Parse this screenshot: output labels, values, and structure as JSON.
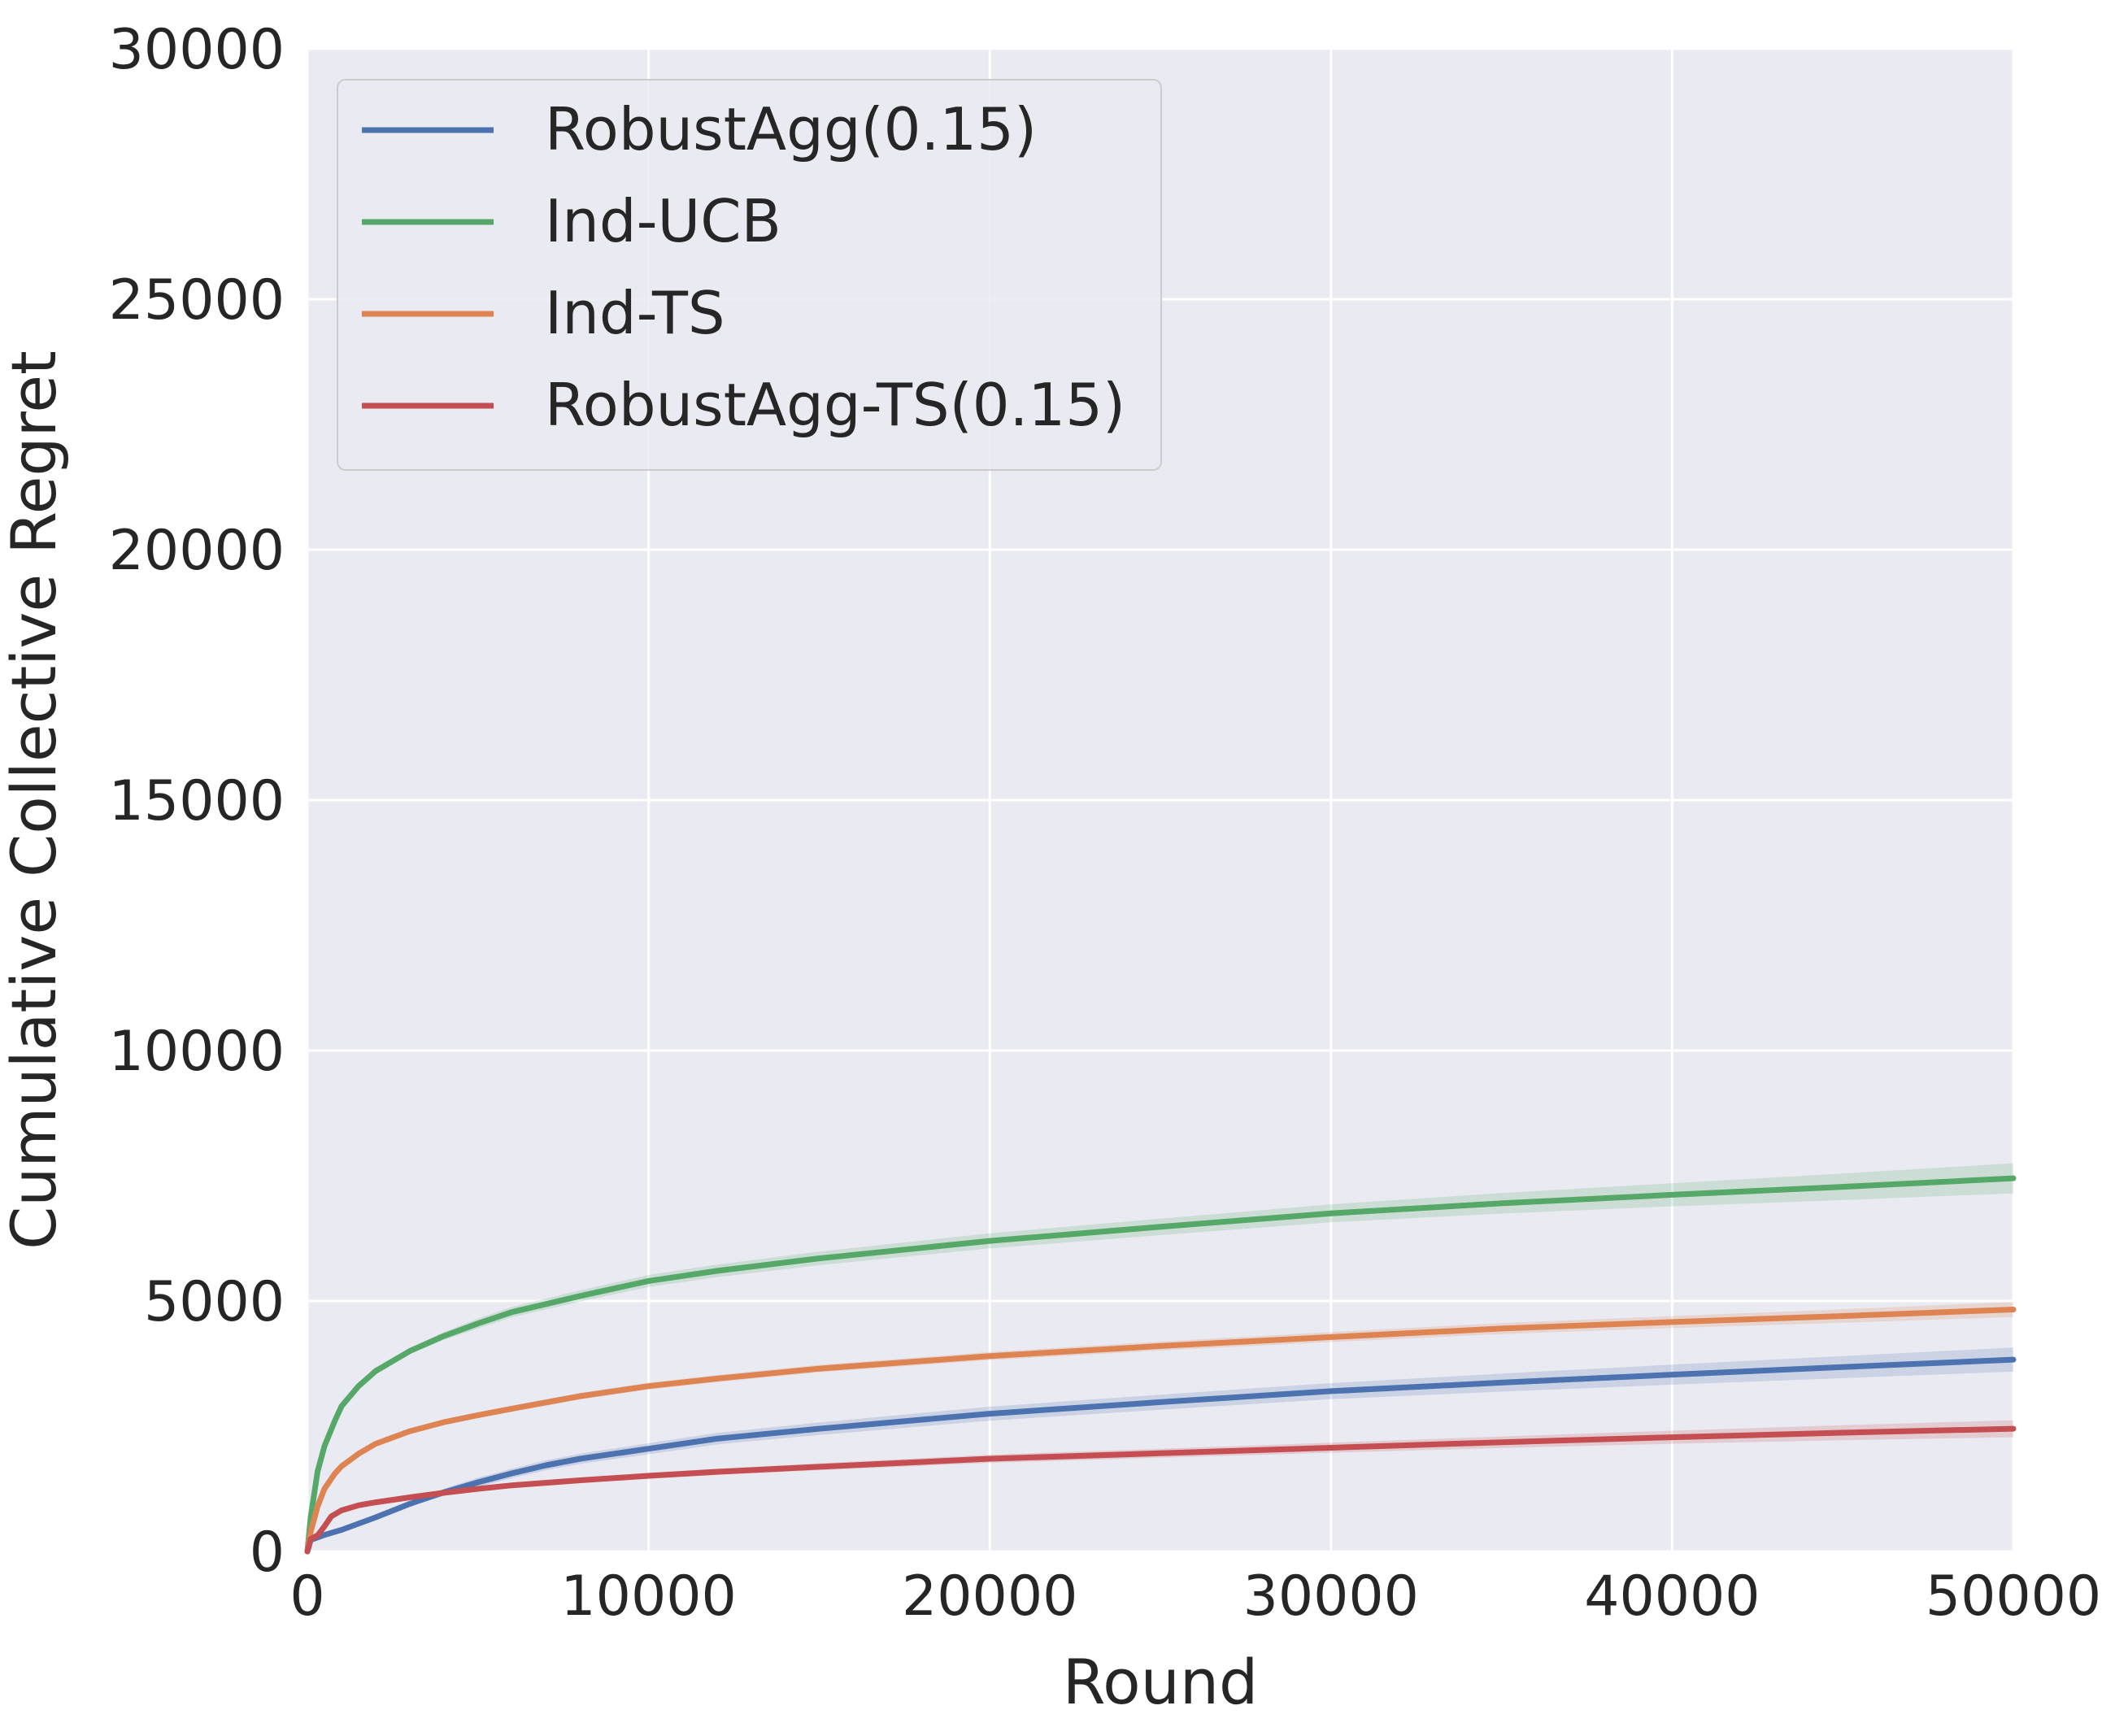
{
  "chart_data": {
    "type": "line",
    "title": "",
    "xlabel": "Round",
    "ylabel": "Cumulative Collective Regret",
    "xlim": [
      0,
      50000
    ],
    "ylim": [
      0,
      30000
    ],
    "xticks": [
      0,
      10000,
      20000,
      30000,
      40000,
      50000
    ],
    "yticks": [
      0,
      5000,
      10000,
      15000,
      20000,
      25000,
      30000
    ],
    "grid": true,
    "legend_position": "top-left",
    "background_color": "#eaeaf2",
    "grid_color": "#ffffff",
    "series": [
      {
        "name": "RobustAgg(0.15)",
        "color": "#4c72b0",
        "points": [
          [
            0,
            0
          ],
          [
            100,
            230
          ],
          [
            500,
            330
          ],
          [
            1000,
            430
          ],
          [
            2000,
            680
          ],
          [
            3000,
            950
          ],
          [
            4000,
            1180
          ],
          [
            5000,
            1380
          ],
          [
            6000,
            1560
          ],
          [
            7000,
            1720
          ],
          [
            8000,
            1850
          ],
          [
            10000,
            2050
          ],
          [
            12000,
            2250
          ],
          [
            15000,
            2450
          ],
          [
            20000,
            2750
          ],
          [
            25000,
            2980
          ],
          [
            30000,
            3200
          ],
          [
            35000,
            3370
          ],
          [
            40000,
            3530
          ],
          [
            45000,
            3680
          ],
          [
            50000,
            3830
          ]
        ],
        "band": [
          [
            0,
            0
          ],
          [
            5000,
            90
          ],
          [
            10000,
            110
          ],
          [
            20000,
            140
          ],
          [
            30000,
            160
          ],
          [
            40000,
            200
          ],
          [
            50000,
            240
          ]
        ]
      },
      {
        "name": "Ind-UCB",
        "color": "#55a868",
        "points": [
          [
            0,
            0
          ],
          [
            100,
            700
          ],
          [
            300,
            1600
          ],
          [
            500,
            2100
          ],
          [
            800,
            2600
          ],
          [
            1000,
            2900
          ],
          [
            1500,
            3300
          ],
          [
            2000,
            3600
          ],
          [
            3000,
            4000
          ],
          [
            4000,
            4300
          ],
          [
            5000,
            4550
          ],
          [
            6000,
            4780
          ],
          [
            8000,
            5100
          ],
          [
            10000,
            5400
          ],
          [
            12000,
            5600
          ],
          [
            15000,
            5850
          ],
          [
            20000,
            6200
          ],
          [
            25000,
            6480
          ],
          [
            30000,
            6750
          ],
          [
            35000,
            6950
          ],
          [
            40000,
            7120
          ],
          [
            45000,
            7280
          ],
          [
            50000,
            7450
          ]
        ],
        "band": [
          [
            0,
            0
          ],
          [
            5000,
            100
          ],
          [
            10000,
            120
          ],
          [
            20000,
            150
          ],
          [
            30000,
            180
          ],
          [
            40000,
            230
          ],
          [
            50000,
            300
          ]
        ]
      },
      {
        "name": "Ind-TS",
        "color": "#dd8452",
        "points": [
          [
            0,
            0
          ],
          [
            100,
            400
          ],
          [
            300,
            900
          ],
          [
            500,
            1250
          ],
          [
            800,
            1550
          ],
          [
            1000,
            1700
          ],
          [
            1500,
            1950
          ],
          [
            2000,
            2150
          ],
          [
            3000,
            2400
          ],
          [
            4000,
            2580
          ],
          [
            5000,
            2720
          ],
          [
            6000,
            2850
          ],
          [
            8000,
            3100
          ],
          [
            10000,
            3300
          ],
          [
            12000,
            3450
          ],
          [
            15000,
            3650
          ],
          [
            20000,
            3900
          ],
          [
            25000,
            4100
          ],
          [
            30000,
            4280
          ],
          [
            35000,
            4450
          ],
          [
            40000,
            4580
          ],
          [
            45000,
            4700
          ],
          [
            50000,
            4830
          ]
        ],
        "band": [
          [
            0,
            0
          ],
          [
            5000,
            60
          ],
          [
            10000,
            70
          ],
          [
            20000,
            80
          ],
          [
            30000,
            100
          ],
          [
            40000,
            120
          ],
          [
            50000,
            150
          ]
        ]
      },
      {
        "name": "RobustAgg-TS(0.15)",
        "color": "#c44e52",
        "points": [
          [
            0,
            0
          ],
          [
            100,
            250
          ],
          [
            300,
            320
          ],
          [
            500,
            500
          ],
          [
            700,
            700
          ],
          [
            1000,
            820
          ],
          [
            1500,
            920
          ],
          [
            2000,
            980
          ],
          [
            3000,
            1080
          ],
          [
            4000,
            1170
          ],
          [
            5000,
            1250
          ],
          [
            6000,
            1320
          ],
          [
            8000,
            1420
          ],
          [
            10000,
            1510
          ],
          [
            12000,
            1590
          ],
          [
            15000,
            1690
          ],
          [
            20000,
            1850
          ],
          [
            25000,
            1960
          ],
          [
            30000,
            2070
          ],
          [
            35000,
            2180
          ],
          [
            40000,
            2280
          ],
          [
            45000,
            2370
          ],
          [
            50000,
            2450
          ]
        ],
        "band": [
          [
            0,
            0
          ],
          [
            5000,
            50
          ],
          [
            10000,
            60
          ],
          [
            20000,
            80
          ],
          [
            30000,
            100
          ],
          [
            40000,
            130
          ],
          [
            50000,
            170
          ]
        ]
      }
    ]
  }
}
